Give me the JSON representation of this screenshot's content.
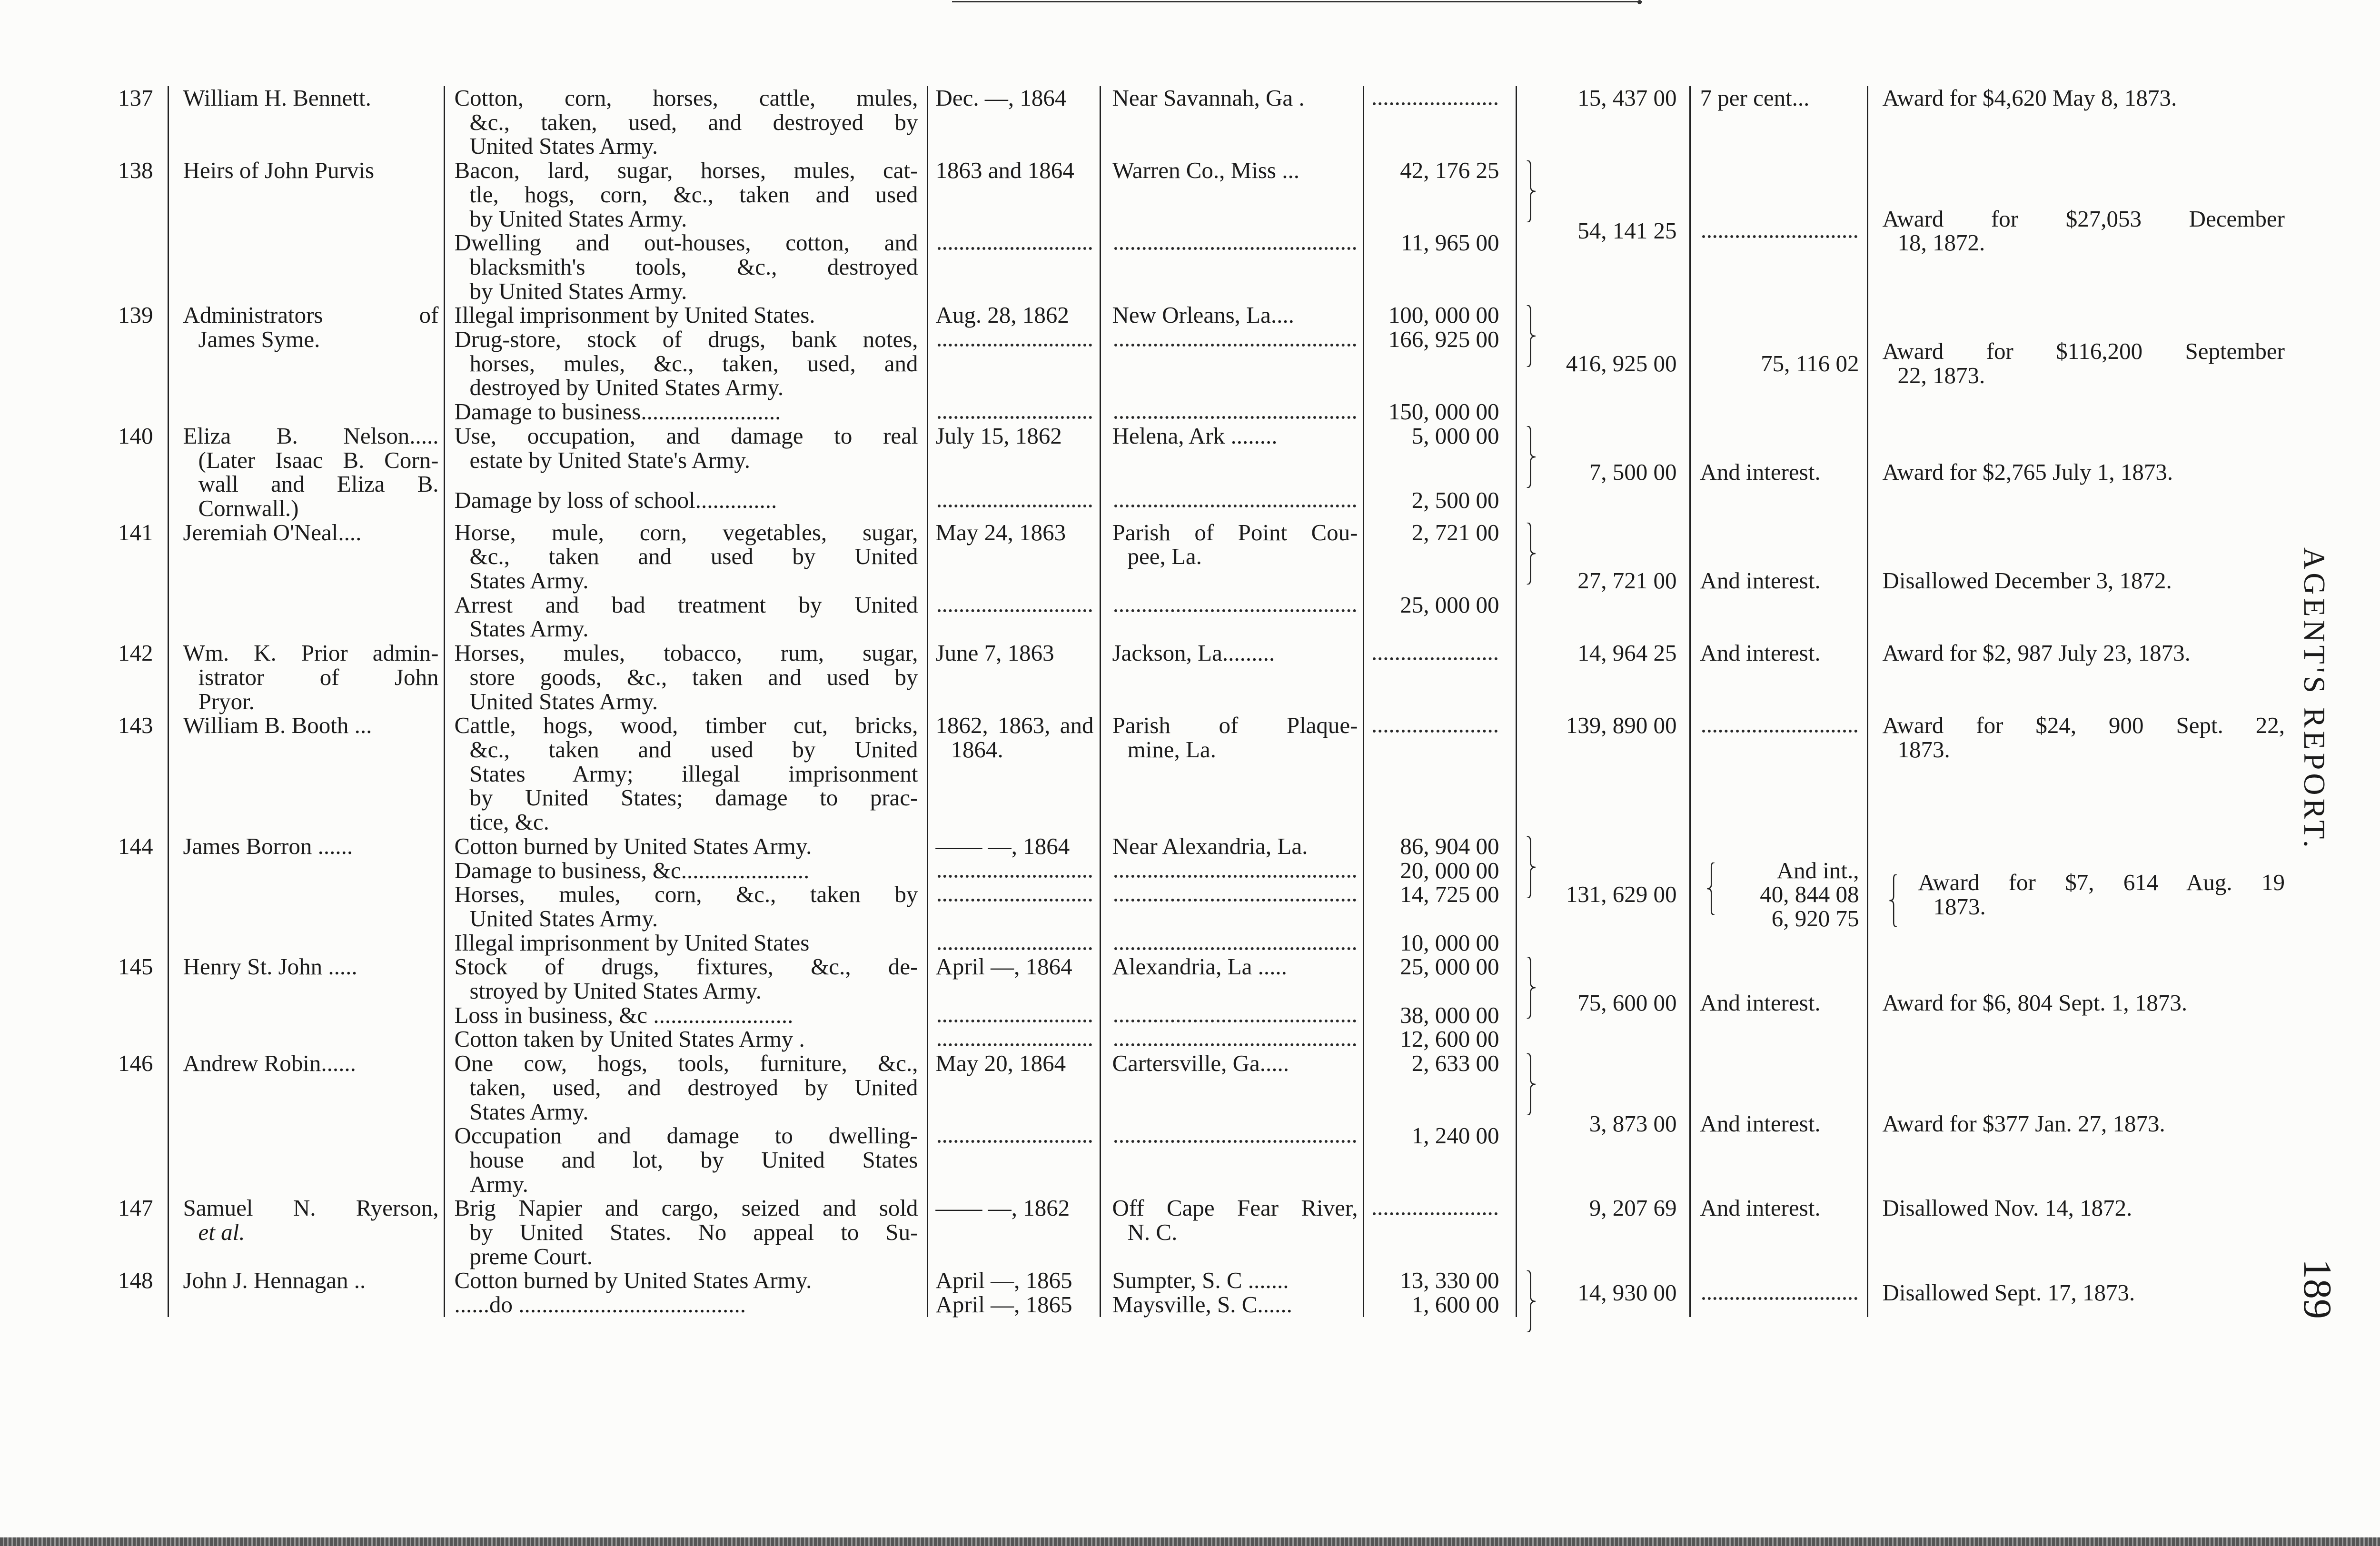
{
  "running_title": "AGENT'S REPORT.",
  "page_number": "189",
  "claims": [
    {
      "no": "137",
      "name": [
        "William H. Bennett."
      ],
      "items": [
        {
          "desc": [
            "Cotton, corn, horses, cattle, mules,",
            "&c., taken, used, and destroyed by",
            "United States Army."
          ],
          "date": [
            "Dec. —, 1864"
          ],
          "place": [
            "Near Savannah, Ga ."
          ],
          "amount": null
        }
      ],
      "total": "15, 437 00",
      "interest": [
        "7 per cent..."
      ],
      "remarks": [
        "Award for $4,620 May 8, 1873."
      ]
    },
    {
      "no": "138",
      "name": [
        "Heirs of John Purvis"
      ],
      "items": [
        {
          "desc": [
            "Bacon, lard, sugar, horses, mules, cat-",
            "tle, hogs, corn, &c., taken and used",
            "by United States Army."
          ],
          "date": [
            "1863 and 1864"
          ],
          "place": [
            "Warren Co., Miss ..."
          ],
          "amount": "42, 176 25"
        },
        {
          "desc": [
            "Dwelling and out-houses, cotton, and",
            "blacksmith's tools, &c., destroyed",
            "by United States Army."
          ],
          "date": null,
          "place": null,
          "amount": "11, 965 00"
        }
      ],
      "total": "54, 141 25",
      "interest": null,
      "remarks": [
        "Award for $27,053 December",
        "18, 1872."
      ]
    },
    {
      "no": "139",
      "name": [
        "Administrators of",
        "James Syme."
      ],
      "items": [
        {
          "desc": [
            "Illegal imprisonment by United States."
          ],
          "date": [
            "Aug. 28, 1862"
          ],
          "place": [
            "New Orleans, La...."
          ],
          "amount": "100, 000 00"
        },
        {
          "desc": [
            "Drug-store, stock of drugs, bank notes,",
            "horses, mules, &c., taken, used, and",
            "destroyed by United States Army."
          ],
          "date": null,
          "place": null,
          "amount": "166, 925 00"
        },
        {
          "desc": [
            "Damage to business........................"
          ],
          "date": null,
          "place": null,
          "amount": "150, 000 00"
        }
      ],
      "total": "416, 925 00",
      "interest": [
        "75, 116 02"
      ],
      "remarks": [
        "Award for $116,200 September",
        "22, 1873."
      ]
    },
    {
      "no": "140",
      "name": [
        "Eliza B. Nelson.....",
        "(Later Isaac B. Corn-",
        "wall and Eliza B.",
        "Cornwall.)"
      ],
      "items": [
        {
          "desc": [
            "Use, occupation, and damage to real",
            "estate by United State's Army."
          ],
          "date": [
            "July 15, 1862"
          ],
          "place": [
            "Helena, Ark ........"
          ],
          "amount": "5, 000 00"
        },
        {
          "desc": [
            "Damage by loss of school.............."
          ],
          "date": null,
          "place": null,
          "amount": "2, 500 00"
        }
      ],
      "total": "7, 500 00",
      "interest": [
        "And interest."
      ],
      "remarks": [
        "Award for $2,765 July 1, 1873."
      ]
    },
    {
      "no": "141",
      "name": [
        "Jeremiah O'Neal...."
      ],
      "items": [
        {
          "desc": [
            "Horse, mule, corn, vegetables, sugar,",
            "&c., taken and used by United",
            "States Army."
          ],
          "date": [
            "May 24, 1863"
          ],
          "place": [
            "Parish of Point Cou-",
            "pee, La."
          ],
          "amount": "2, 721 00"
        },
        {
          "desc": [
            "Arrest and bad treatment by United",
            "States Army."
          ],
          "date": null,
          "place": null,
          "amount": "25, 000 00"
        }
      ],
      "total": "27, 721 00",
      "interest": [
        "And interest."
      ],
      "remarks": [
        "Disallowed December 3, 1872."
      ]
    },
    {
      "no": "142",
      "name": [
        "Wm. K. Prior admin-",
        "istrator of John",
        "Pryor."
      ],
      "items": [
        {
          "desc": [
            "Horses, mules, tobacco, rum, sugar,",
            "store goods, &c., taken and used by",
            "United States Army."
          ],
          "date": [
            "June 7, 1863"
          ],
          "place": [
            "Jackson, La........."
          ],
          "amount": null
        }
      ],
      "total": "14, 964 25",
      "interest": [
        "And interest."
      ],
      "remarks": [
        "Award for $2, 987 July 23, 1873."
      ]
    },
    {
      "no": "143",
      "name": [
        "William B. Booth ..."
      ],
      "items": [
        {
          "desc": [
            "Cattle, hogs, wood, timber cut, bricks,",
            "&c., taken and used by United",
            "States Army; illegal imprisonment",
            "by United States; damage to prac-",
            "tice, &c."
          ],
          "date": [
            "1862, 1863, and",
            "1864."
          ],
          "place": [
            "Parish of Plaque-",
            "mine, La."
          ],
          "amount": null
        }
      ],
      "total": "139, 890 00",
      "interest": null,
      "remarks": [
        "Award for $24, 900 Sept. 22,",
        "1873."
      ]
    },
    {
      "no": "144",
      "name": [
        "James Borron ......"
      ],
      "items": [
        {
          "desc": [
            "Cotton burned by United States Army."
          ],
          "date": [
            "—— —, 1864"
          ],
          "place": [
            "Near Alexandria, La."
          ],
          "amount": "86, 904 00"
        },
        {
          "desc": [
            "Damage to business, &c......................"
          ],
          "date": null,
          "place": null,
          "amount": "20, 000 00"
        },
        {
          "desc": [
            "Horses, mules, corn, &c., taken by",
            "United States Army."
          ],
          "date": null,
          "place": null,
          "amount": "14, 725 00"
        },
        {
          "desc": [
            "Illegal imprisonment by United States"
          ],
          "date": null,
          "place": null,
          "amount": "10, 000 00"
        }
      ],
      "total": "131, 629 00",
      "interest": [
        "And int.,",
        "40, 844 08",
        "6, 920 75"
      ],
      "remarks": [
        "Award for $7, 614 Aug. 19",
        "1873."
      ],
      "remarks_braced": true
    },
    {
      "no": "145",
      "name": [
        "Henry St. John ....."
      ],
      "items": [
        {
          "desc": [
            "Stock of drugs, fixtures, &c., de-",
            "stroyed by United States Army."
          ],
          "date": [
            "April —, 1864"
          ],
          "place": [
            "Alexandria, La ....."
          ],
          "amount": "25, 000 00"
        },
        {
          "desc": [
            "Loss in business, &c ........................"
          ],
          "date": null,
          "place": null,
          "amount": "38, 000 00"
        },
        {
          "desc": [
            "Cotton taken by United States Army ."
          ],
          "date": null,
          "place": null,
          "amount": "12, 600 00"
        }
      ],
      "total": "75, 600 00",
      "interest": [
        "And interest."
      ],
      "remarks": [
        "Award for $6, 804 Sept. 1, 1873."
      ]
    },
    {
      "no": "146",
      "name": [
        "Andrew Robin......"
      ],
      "items": [
        {
          "desc": [
            "One cow, hogs, tools, furniture, &c.,",
            "taken, used, and destroyed by United",
            "States Army."
          ],
          "date": [
            "May 20, 1864"
          ],
          "place": [
            "Cartersville, Ga....."
          ],
          "amount": "2, 633 00"
        },
        {
          "desc": [
            "Occupation and damage to dwelling-",
            "house and lot, by United States",
            "Army."
          ],
          "date": null,
          "place": null,
          "amount": "1, 240 00"
        }
      ],
      "total": "3, 873 00",
      "interest": [
        "And interest."
      ],
      "remarks": [
        "Award for $377 Jan. 27, 1873."
      ]
    },
    {
      "no": "147",
      "name": [
        "Samuel N. Ryerson,",
        "et al."
      ],
      "items": [
        {
          "desc": [
            "Brig Napier and cargo, seized and sold",
            "by United States. No appeal to Su-",
            "preme Court."
          ],
          "date": [
            "—— —, 1862"
          ],
          "place": [
            "Off Cape Fear River,",
            "N. C."
          ],
          "amount": null
        }
      ],
      "total": "9, 207 69",
      "interest": [
        "And interest."
      ],
      "remarks": [
        "Disallowed Nov. 14, 1872."
      ]
    },
    {
      "no": "148",
      "name": [
        "John J. Hennagan .."
      ],
      "items": [
        {
          "desc": [
            "Cotton burned by United States Army."
          ],
          "date": [
            "April —, 1865"
          ],
          "place": [
            "Sumpter, S. C ......."
          ],
          "amount": "13, 330 00"
        },
        {
          "desc": [
            "......do ......................................."
          ],
          "date": [
            "April —, 1865"
          ],
          "place": [
            "Maysville, S. C......"
          ],
          "amount": "1, 600 00"
        }
      ],
      "total": "14, 930 00",
      "interest": null,
      "remarks": [
        "Disallowed Sept. 17, 1873."
      ]
    }
  ]
}
